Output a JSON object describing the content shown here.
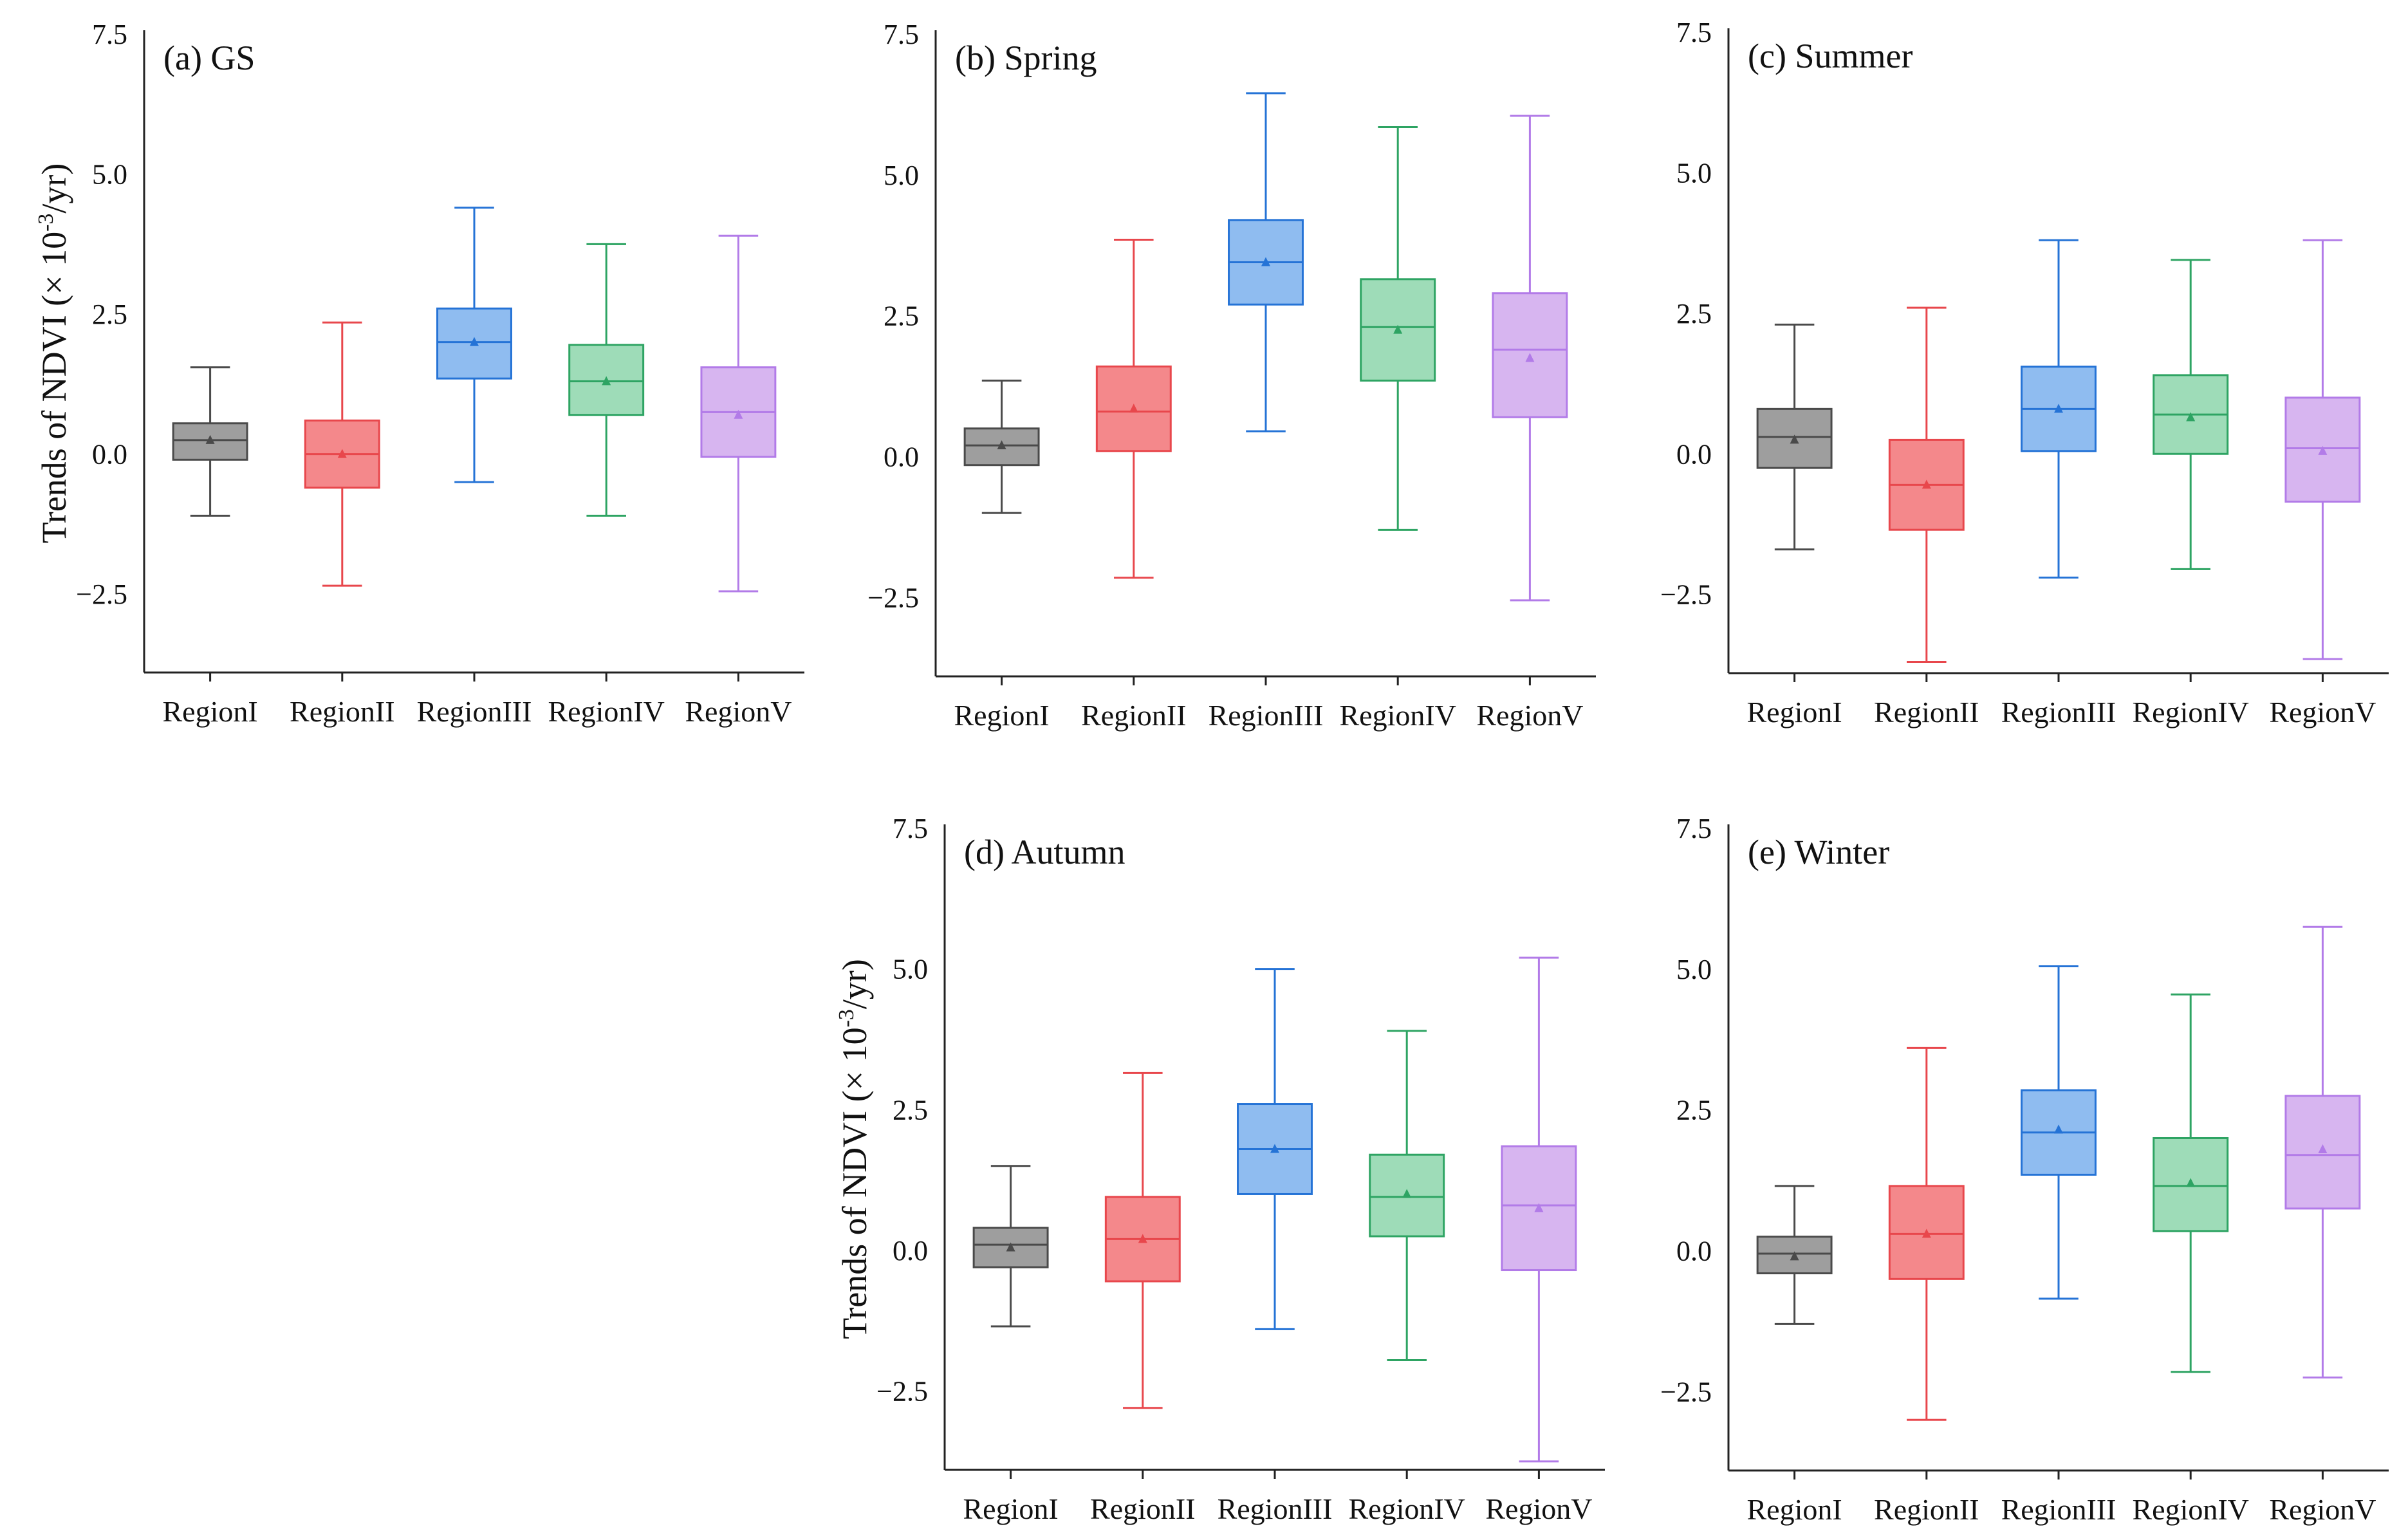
{
  "figure": {
    "y_axis_title_prefix": "Trends of NDVI (× 10",
    "y_axis_title_exponent": "-3",
    "y_axis_title_suffix": "/yr)"
  },
  "chart_data": [
    {
      "type": "box",
      "title": "(a) GS",
      "ylabel": "Trends of NDVI (× 10^-3/yr)",
      "ylim": [
        -3.9,
        7.5
      ],
      "yticks": [
        -2.5,
        0.0,
        2.5,
        5.0,
        7.5
      ],
      "ytick_labels": [
        "−2.5",
        "0.0",
        "2.5",
        "5.0",
        "7.5"
      ],
      "categories": [
        "RegionI",
        "RegionII",
        "RegionIII",
        "RegionIV",
        "RegionV"
      ],
      "boxes": [
        {
          "category": "RegionI",
          "whisker_low": -1.1,
          "q1": -0.1,
          "median": 0.25,
          "q3": 0.55,
          "whisker_high": 1.55,
          "mean": 0.25
        },
        {
          "category": "RegionII",
          "whisker_low": -2.35,
          "q1": -0.6,
          "median": 0.0,
          "q3": 0.6,
          "whisker_high": 2.35,
          "mean": 0.0
        },
        {
          "category": "RegionIII",
          "whisker_low": -0.5,
          "q1": 1.35,
          "median": 2.0,
          "q3": 2.6,
          "whisker_high": 4.4,
          "mean": 2.0
        },
        {
          "category": "RegionIV",
          "whisker_low": -1.1,
          "q1": 0.7,
          "median": 1.3,
          "q3": 1.95,
          "whisker_high": 3.75,
          "mean": 1.3
        },
        {
          "category": "RegionV",
          "whisker_low": -2.45,
          "q1": -0.05,
          "median": 0.75,
          "q3": 1.55,
          "whisker_high": 3.9,
          "mean": 0.7
        }
      ]
    },
    {
      "type": "box",
      "title": "(b) Spring",
      "ylabel": "",
      "ylim": [
        -3.9,
        7.5
      ],
      "yticks": [
        -2.5,
        0.0,
        2.5,
        5.0,
        7.5
      ],
      "ytick_labels": [
        "−2.5",
        "0.0",
        "2.5",
        "5.0",
        "7.5"
      ],
      "categories": [
        "RegionI",
        "RegionII",
        "RegionIII",
        "RegionIV",
        "RegionV"
      ],
      "boxes": [
        {
          "category": "RegionI",
          "whisker_low": -1.0,
          "q1": -0.15,
          "median": 0.2,
          "q3": 0.5,
          "whisker_high": 1.35,
          "mean": 0.2
        },
        {
          "category": "RegionII",
          "whisker_low": -2.15,
          "q1": 0.1,
          "median": 0.8,
          "q3": 1.6,
          "whisker_high": 3.85,
          "mean": 0.85
        },
        {
          "category": "RegionIII",
          "whisker_low": 0.45,
          "q1": 2.7,
          "median": 3.45,
          "q3": 4.2,
          "whisker_high": 6.45,
          "mean": 3.45
        },
        {
          "category": "RegionIV",
          "whisker_low": -1.3,
          "q1": 1.35,
          "median": 2.3,
          "q3": 3.15,
          "whisker_high": 5.85,
          "mean": 2.25
        },
        {
          "category": "RegionV",
          "whisker_low": -2.55,
          "q1": 0.7,
          "median": 1.9,
          "q3": 2.9,
          "whisker_high": 6.05,
          "mean": 1.75
        }
      ]
    },
    {
      "type": "box",
      "title": "(c) Summer",
      "ylabel": "",
      "ylim": [
        -3.9,
        7.5
      ],
      "yticks": [
        -2.5,
        0.0,
        2.5,
        5.0,
        7.5
      ],
      "ytick_labels": [
        "−2.5",
        "0.0",
        "2.5",
        "5.0",
        "7.5"
      ],
      "categories": [
        "RegionI",
        "RegionII",
        "RegionIII",
        "RegionIV",
        "RegionV"
      ],
      "boxes": [
        {
          "category": "RegionI",
          "whisker_low": -1.7,
          "q1": -0.25,
          "median": 0.3,
          "q3": 0.8,
          "whisker_high": 2.3,
          "mean": 0.25
        },
        {
          "category": "RegionII",
          "whisker_low": -3.7,
          "q1": -1.35,
          "median": -0.55,
          "q3": 0.25,
          "whisker_high": 2.6,
          "mean": -0.55
        },
        {
          "category": "RegionIII",
          "whisker_low": -2.2,
          "q1": 0.05,
          "median": 0.8,
          "q3": 1.55,
          "whisker_high": 3.8,
          "mean": 0.8
        },
        {
          "category": "RegionIV",
          "whisker_low": -2.05,
          "q1": 0.0,
          "median": 0.7,
          "q3": 1.4,
          "whisker_high": 3.45,
          "mean": 0.65
        },
        {
          "category": "RegionV",
          "whisker_low": -3.65,
          "q1": -0.85,
          "median": 0.1,
          "q3": 1.0,
          "whisker_high": 3.8,
          "mean": 0.05
        }
      ]
    },
    {
      "type": "box",
      "title": "(d) Autumn",
      "ylabel": "Trends of NDVI (× 10^-3/yr)",
      "ylim": [
        -3.9,
        7.5
      ],
      "yticks": [
        -2.5,
        0.0,
        2.5,
        5.0,
        7.5
      ],
      "ytick_labels": [
        "−2.5",
        "0.0",
        "2.5",
        "5.0",
        "7.5"
      ],
      "categories": [
        "RegionI",
        "RegionII",
        "RegionIII",
        "RegionIV",
        "RegionV"
      ],
      "boxes": [
        {
          "category": "RegionI",
          "whisker_low": -1.35,
          "q1": -0.3,
          "median": 0.1,
          "q3": 0.4,
          "whisker_high": 1.5,
          "mean": 0.05
        },
        {
          "category": "RegionII",
          "whisker_low": -2.8,
          "q1": -0.55,
          "median": 0.2,
          "q3": 0.95,
          "whisker_high": 3.15,
          "mean": 0.2
        },
        {
          "category": "RegionIII",
          "whisker_low": -1.4,
          "q1": 1.0,
          "median": 1.8,
          "q3": 2.6,
          "whisker_high": 5.0,
          "mean": 1.8
        },
        {
          "category": "RegionIV",
          "whisker_low": -1.95,
          "q1": 0.25,
          "median": 0.95,
          "q3": 1.7,
          "whisker_high": 3.9,
          "mean": 1.0
        },
        {
          "category": "RegionV",
          "whisker_low": -3.75,
          "q1": -0.35,
          "median": 0.8,
          "q3": 1.85,
          "whisker_high": 5.2,
          "mean": 0.75
        }
      ]
    },
    {
      "type": "box",
      "title": "(e) Winter",
      "ylabel": "",
      "ylim": [
        -3.9,
        7.5
      ],
      "yticks": [
        -2.5,
        0.0,
        2.5,
        5.0,
        7.5
      ],
      "ytick_labels": [
        "−2.5",
        "0.0",
        "2.5",
        "5.0",
        "7.5"
      ],
      "categories": [
        "RegionI",
        "RegionII",
        "RegionIII",
        "RegionIV",
        "RegionV"
      ],
      "boxes": [
        {
          "category": "RegionI",
          "whisker_low": -1.3,
          "q1": -0.4,
          "median": -0.05,
          "q3": 0.25,
          "whisker_high": 1.15,
          "mean": -0.1
        },
        {
          "category": "RegionII",
          "whisker_low": -3.0,
          "q1": -0.5,
          "median": 0.3,
          "q3": 1.15,
          "whisker_high": 3.6,
          "mean": 0.3
        },
        {
          "category": "RegionIII",
          "whisker_low": -0.85,
          "q1": 1.35,
          "median": 2.1,
          "q3": 2.85,
          "whisker_high": 5.05,
          "mean": 2.15
        },
        {
          "category": "RegionIV",
          "whisker_low": -2.15,
          "q1": 0.35,
          "median": 1.15,
          "q3": 2.0,
          "whisker_high": 4.55,
          "mean": 1.2
        },
        {
          "category": "RegionV",
          "whisker_low": -2.25,
          "q1": 0.75,
          "median": 1.7,
          "q3": 2.75,
          "whisker_high": 5.75,
          "mean": 1.8
        }
      ]
    }
  ],
  "colors": {
    "RegionI": {
      "stroke": "#4a4a4a",
      "fill": "#9e9e9e"
    },
    "RegionII": {
      "stroke": "#e8474c",
      "fill": "#f4888b"
    },
    "RegionIII": {
      "stroke": "#2573d6",
      "fill": "#8fbcf0"
    },
    "RegionIV": {
      "stroke": "#2ea463",
      "fill": "#9edcb8"
    },
    "RegionV": {
      "stroke": "#b27be8",
      "fill": "#d7b5f0"
    }
  }
}
